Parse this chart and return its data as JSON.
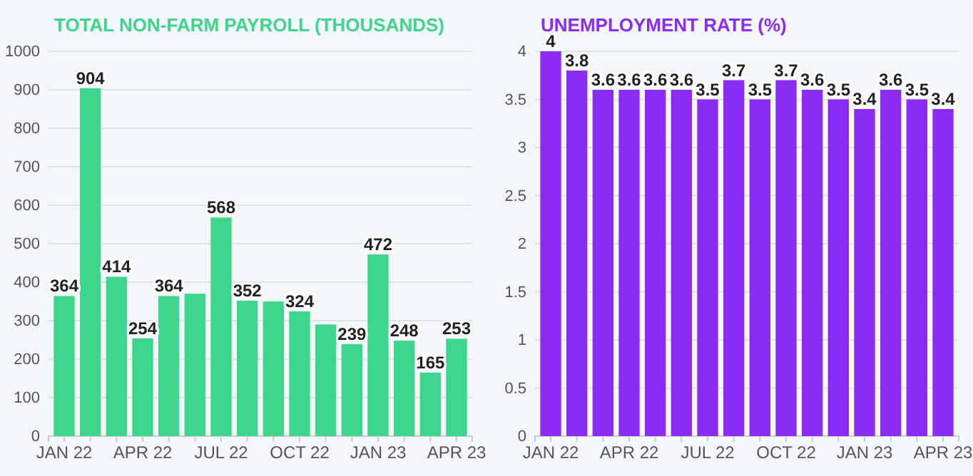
{
  "chart_data": [
    {
      "type": "bar",
      "title": "TOTAL NON-FARM PAYROLL (THOUSANDS)",
      "categories": [
        "JAN 22",
        null,
        null,
        "APR 22",
        null,
        null,
        "JUL 22",
        null,
        null,
        "OCT 22",
        null,
        null,
        "JAN 23",
        null,
        null,
        "APR 23"
      ],
      "series": [
        {
          "color": "#3dd68c",
          "values": [
            364,
            904,
            414,
            254,
            364,
            370,
            568,
            352,
            350,
            324,
            290,
            239,
            472,
            248,
            165,
            253
          ],
          "value_labels": [
            "364",
            "904",
            "414",
            "254",
            "364",
            null,
            "568",
            "352",
            null,
            "324",
            null,
            "239",
            "472",
            "248",
            "165",
            "253"
          ]
        }
      ],
      "ylim": [
        0,
        1000
      ],
      "yticks": [
        0,
        100,
        200,
        300,
        400,
        500,
        600,
        700,
        800,
        900,
        1000
      ],
      "grid": "y"
    },
    {
      "type": "bar",
      "title": "UNEMPLOYMENT RATE (%)",
      "categories": [
        "JAN 22",
        null,
        null,
        "APR 22",
        null,
        null,
        "JUL 22",
        null,
        null,
        "OCT 22",
        null,
        null,
        "JAN 23",
        null,
        null,
        "APR 23"
      ],
      "series": [
        {
          "color": "#8b2cf5",
          "values": [
            4,
            3.8,
            3.6,
            3.6,
            3.6,
            3.6,
            3.5,
            3.7,
            3.5,
            3.7,
            3.6,
            3.5,
            3.4,
            3.6,
            3.5,
            3.4
          ]
        }
      ],
      "ylim": [
        0,
        4
      ],
      "yticks": [
        0,
        0.5,
        1,
        1.5,
        2,
        2.5,
        3,
        3.5,
        4
      ],
      "grid": "y",
      "data_labels": true
    }
  ]
}
